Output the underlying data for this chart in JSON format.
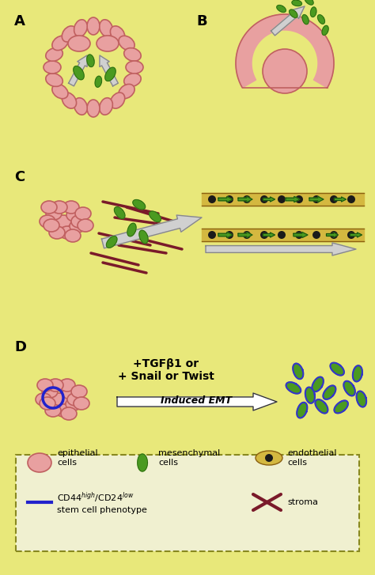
{
  "bg_color": "#e8e87a",
  "bg_color2": "#f5f5a0",
  "epithelial_color": "#e8a0a0",
  "epithelial_border": "#c06060",
  "mesenchymal_color": "#4a9a20",
  "endothelial_color": "#d4b840",
  "stroma_color": "#7a1a2a",
  "arrow_color": "#d0d0d0",
  "arrow_border": "#a0a0a0",
  "blue_stem": "#2222cc",
  "panel_labels": [
    "A",
    "B",
    "C",
    "D"
  ],
  "legend_text1": "epithelial\ncells",
  "legend_text2": "mesenchymal\ncells",
  "legend_text3": "endothelial\ncells",
  "legend_text4": "CD44$^{high}$/CD24$^{low}$\nstem cell phenotype",
  "legend_text5": "stroma",
  "tgf_text": "+TGFβ1 or\n+ Snail or Twist",
  "emt_text": "Induced EMT"
}
